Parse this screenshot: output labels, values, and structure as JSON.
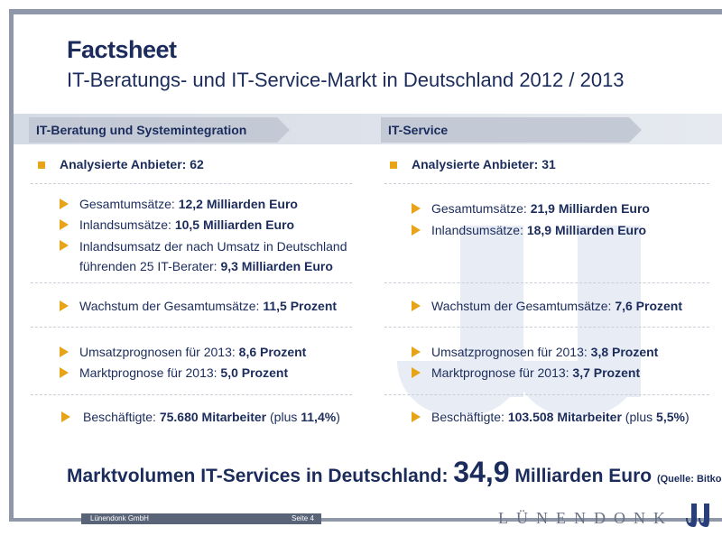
{
  "title": "Factsheet",
  "subtitle": "IT-Beratungs- und IT-Service-Markt in Deutschland 2012 / 2013",
  "left": {
    "tab": "IT-Beratung und Systemintegration",
    "header": "Analysierte Anbieter: 62",
    "group1": [
      {
        "label": "Gesamtumsätze: ",
        "value": "12,2 Milliarden Euro"
      },
      {
        "label": "Inlandsumsätze: ",
        "value": "10,5 Milliarden Euro"
      },
      {
        "label": "Inlandsumsatz der nach Umsatz in Deutschland",
        "label2": "führenden 25 IT-Berater: ",
        "value": "9,3 Milliarden Euro"
      }
    ],
    "growth": {
      "label": "Wachstum der Gesamtumsätze: ",
      "value": "11,5 Prozent"
    },
    "forecast": [
      {
        "label": "Umsatzprognosen für 2013: ",
        "value": "8,6 Prozent"
      },
      {
        "label": "Marktprognose für 2013: ",
        "value": "5,0 Prozent"
      }
    ],
    "employees": {
      "label": "Beschäftigte: ",
      "value": "75.680 Mitarbeiter",
      "suffix_pre": " (plus ",
      "suffix_value": "11,4%",
      "suffix_post": ")"
    }
  },
  "right": {
    "tab": "IT-Service",
    "header": "Analysierte Anbieter: 31",
    "group1": [
      {
        "label": "Gesamtumsätze: ",
        "value": "21,9 Milliarden Euro"
      },
      {
        "label": "Inlandsumsätze: ",
        "value": "18,9 Milliarden Euro"
      }
    ],
    "growth": {
      "label": "Wachstum der Gesamtumsätze: ",
      "value": "7,6 Prozent"
    },
    "forecast": [
      {
        "label": "Umsatzprognosen für 2013: ",
        "value": "3,8 Prozent"
      },
      {
        "label": "Marktprognose für 2013: ",
        "value": "3,7 Prozent"
      }
    ],
    "employees": {
      "label": "Beschäftigte: ",
      "value": "103.508 Mitarbeiter",
      "suffix_pre": " (plus ",
      "suffix_value": "5,5%",
      "suffix_post": ")"
    }
  },
  "market": {
    "label": "Marktvolumen IT-Services in Deutschland",
    "colon": ": ",
    "value": "34,9",
    "unit": " Milliarden Euro ",
    "source": "(Quelle: Bitkom)"
  },
  "footer": {
    "company": "Lünendonk GmbH",
    "page": "Seite 4",
    "logo": "LÜNENDONK"
  },
  "colors": {
    "accent": "#e8a317",
    "navy": "#1b2c5c",
    "band": "#c3cad6"
  }
}
